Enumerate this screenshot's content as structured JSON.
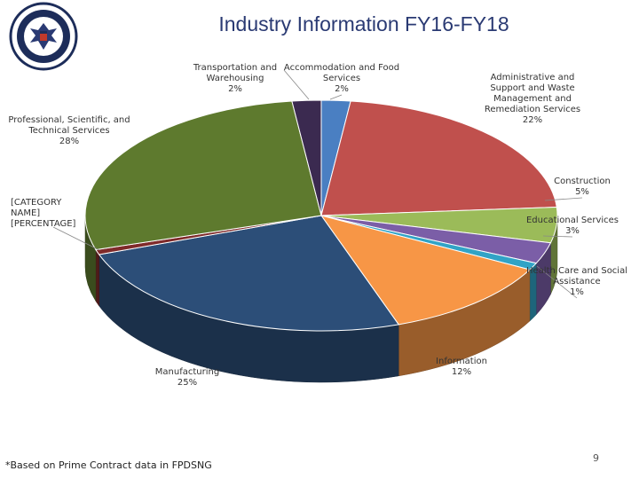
{
  "slide": {
    "title": "Industry Information FY16-FY18",
    "footnote": "*Based on Prime Contract data in FPDSNG",
    "page_number": "9"
  },
  "colors": {
    "title": "#2a3a73",
    "label": "#333333"
  },
  "chart_data": {
    "type": "pie",
    "title": "Industry Information FY16-FY18",
    "three_d": true,
    "slices": [
      {
        "label_lines": [
          "Accommodation and Food",
          "Services"
        ],
        "pct_label": "2%",
        "value": 2,
        "color": "#4a7fc2"
      },
      {
        "label_lines": [
          "Administrative and",
          "Support and Waste",
          "Management and",
          "Remediation Services"
        ],
        "pct_label": "22%",
        "value": 22,
        "color": "#c0504d"
      },
      {
        "label_lines": [
          "Construction"
        ],
        "pct_label": "5%",
        "value": 5,
        "color": "#9bbb59"
      },
      {
        "label_lines": [
          "Educational Services"
        ],
        "pct_label": "3%",
        "value": 3,
        "color": "#7b5ea7"
      },
      {
        "label_lines": [
          "Health Care and Social",
          "Assistance"
        ],
        "pct_label": "1%",
        "value": 1,
        "color": "#31a3c6"
      },
      {
        "label_lines": [
          "Information"
        ],
        "pct_label": "12%",
        "value": 12,
        "color": "#f79646"
      },
      {
        "label_lines": [
          "Manufacturing"
        ],
        "pct_label": "25%",
        "value": 25,
        "color": "#2c4e78"
      },
      {
        "label_lines": [
          "[CATEGORY",
          "NAME]"
        ],
        "pct_label": "[PERCENTAGE]",
        "value": 0.7,
        "color": "#7f2a2a"
      },
      {
        "label_lines": [
          "Professional, Scientific, and",
          "Technical Services"
        ],
        "pct_label": "28%",
        "value": 28,
        "color": "#5e7a2e"
      },
      {
        "label_lines": [
          "Transportation and",
          "Warehousing"
        ],
        "pct_label": "2%",
        "value": 2,
        "color": "#3b2a50"
      }
    ]
  }
}
